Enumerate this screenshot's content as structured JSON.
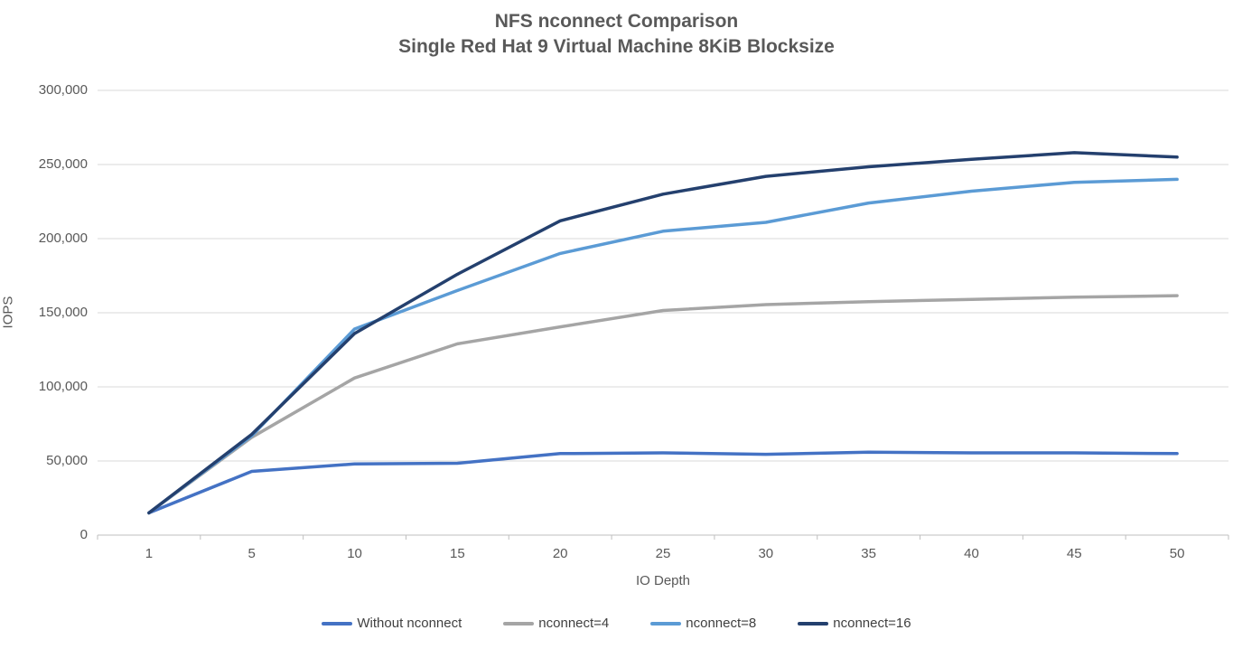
{
  "chart_data": {
    "type": "line",
    "title": "NFS nconnect Comparison",
    "subtitle": "Single Red Hat 9 Virtual Machine 8KiB Blocksize",
    "xlabel": "IO Depth",
    "ylabel": "IOPS",
    "categories": [
      "1",
      "5",
      "10",
      "15",
      "20",
      "25",
      "30",
      "35",
      "40",
      "45",
      "50"
    ],
    "y_ticks": [
      "0",
      "50,000",
      "100,000",
      "150,000",
      "200,000",
      "250,000",
      "300,000"
    ],
    "ylim": [
      0,
      300000
    ],
    "grid": "horizontal",
    "legend_position": "bottom",
    "series": [
      {
        "name": "Without nconnect",
        "color": "#4472C4",
        "values": [
          15000,
          43000,
          48000,
          48500,
          55000,
          55500,
          54500,
          56000,
          55500,
          55500,
          55000
        ]
      },
      {
        "name": "nconnect=4",
        "color": "#A5A5A5",
        "values": [
          15000,
          66000,
          106000,
          129000,
          140500,
          151500,
          155500,
          157500,
          159000,
          160500,
          161500
        ]
      },
      {
        "name": "nconnect=8",
        "color": "#5B9BD5",
        "values": [
          15000,
          67000,
          139000,
          165000,
          190000,
          205000,
          211000,
          224000,
          232000,
          238000,
          240000
        ]
      },
      {
        "name": "nconnect=16",
        "color": "#24406E",
        "values": [
          15000,
          68000,
          136000,
          176000,
          212000,
          230000,
          242000,
          248500,
          253500,
          258000,
          255000
        ]
      }
    ],
    "colors": {
      "title_text": "#595959",
      "tick_text": "#595959",
      "legend_text": "#404040",
      "gridline": "#D9D9D9",
      "axis_line": "#BFBFBF"
    }
  }
}
